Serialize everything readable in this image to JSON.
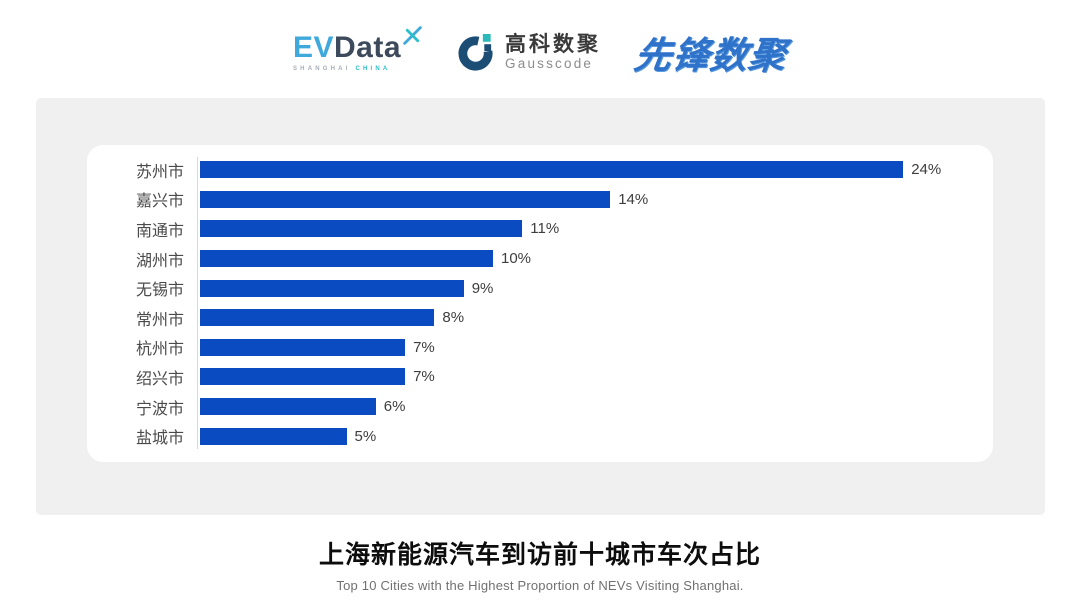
{
  "header": {
    "evdata": {
      "ev": "EV",
      "data": "Data",
      "sub_left": "SHANGHAI",
      "sub_right": "CHINA",
      "accent_blue": "#3FA9DC",
      "dark_slate": "#3D4A5C",
      "teal": "#2BC0C8"
    },
    "gausscode": {
      "cn": "高科数聚",
      "en": "Gausscode",
      "navy": "#1B4D75",
      "teal": "#2CB9B9"
    },
    "pioneer": {
      "text": "先锋数聚",
      "blue": "#2F72C9"
    }
  },
  "chart_data": {
    "type": "bar",
    "orientation": "horizontal",
    "title": "上海新能源汽车到访前十城市车次占比",
    "categories": [
      "苏州市",
      "嘉兴市",
      "南通市",
      "湖州市",
      "无锡市",
      "常州市",
      "杭州市",
      "绍兴市",
      "宁波市",
      "盐城市"
    ],
    "values": [
      24,
      14,
      11,
      10,
      9,
      8,
      7,
      7,
      6,
      5
    ],
    "value_labels": [
      "24%",
      "14%",
      "11%",
      "10%",
      "9%",
      "8%",
      "7%",
      "7%",
      "6%",
      "5%"
    ],
    "unit": "%",
    "xlim": [
      0,
      26
    ],
    "grid": false,
    "legend": "none",
    "bar_color": "#0B4BC2",
    "axis_line_color": "#D9D9D9"
  },
  "footer": {
    "title": "上海新能源汽车到访前十城市车次占比",
    "subtitle": "Top 10 Cities with the Highest Proportion of  NEVs Visiting Shanghai."
  }
}
